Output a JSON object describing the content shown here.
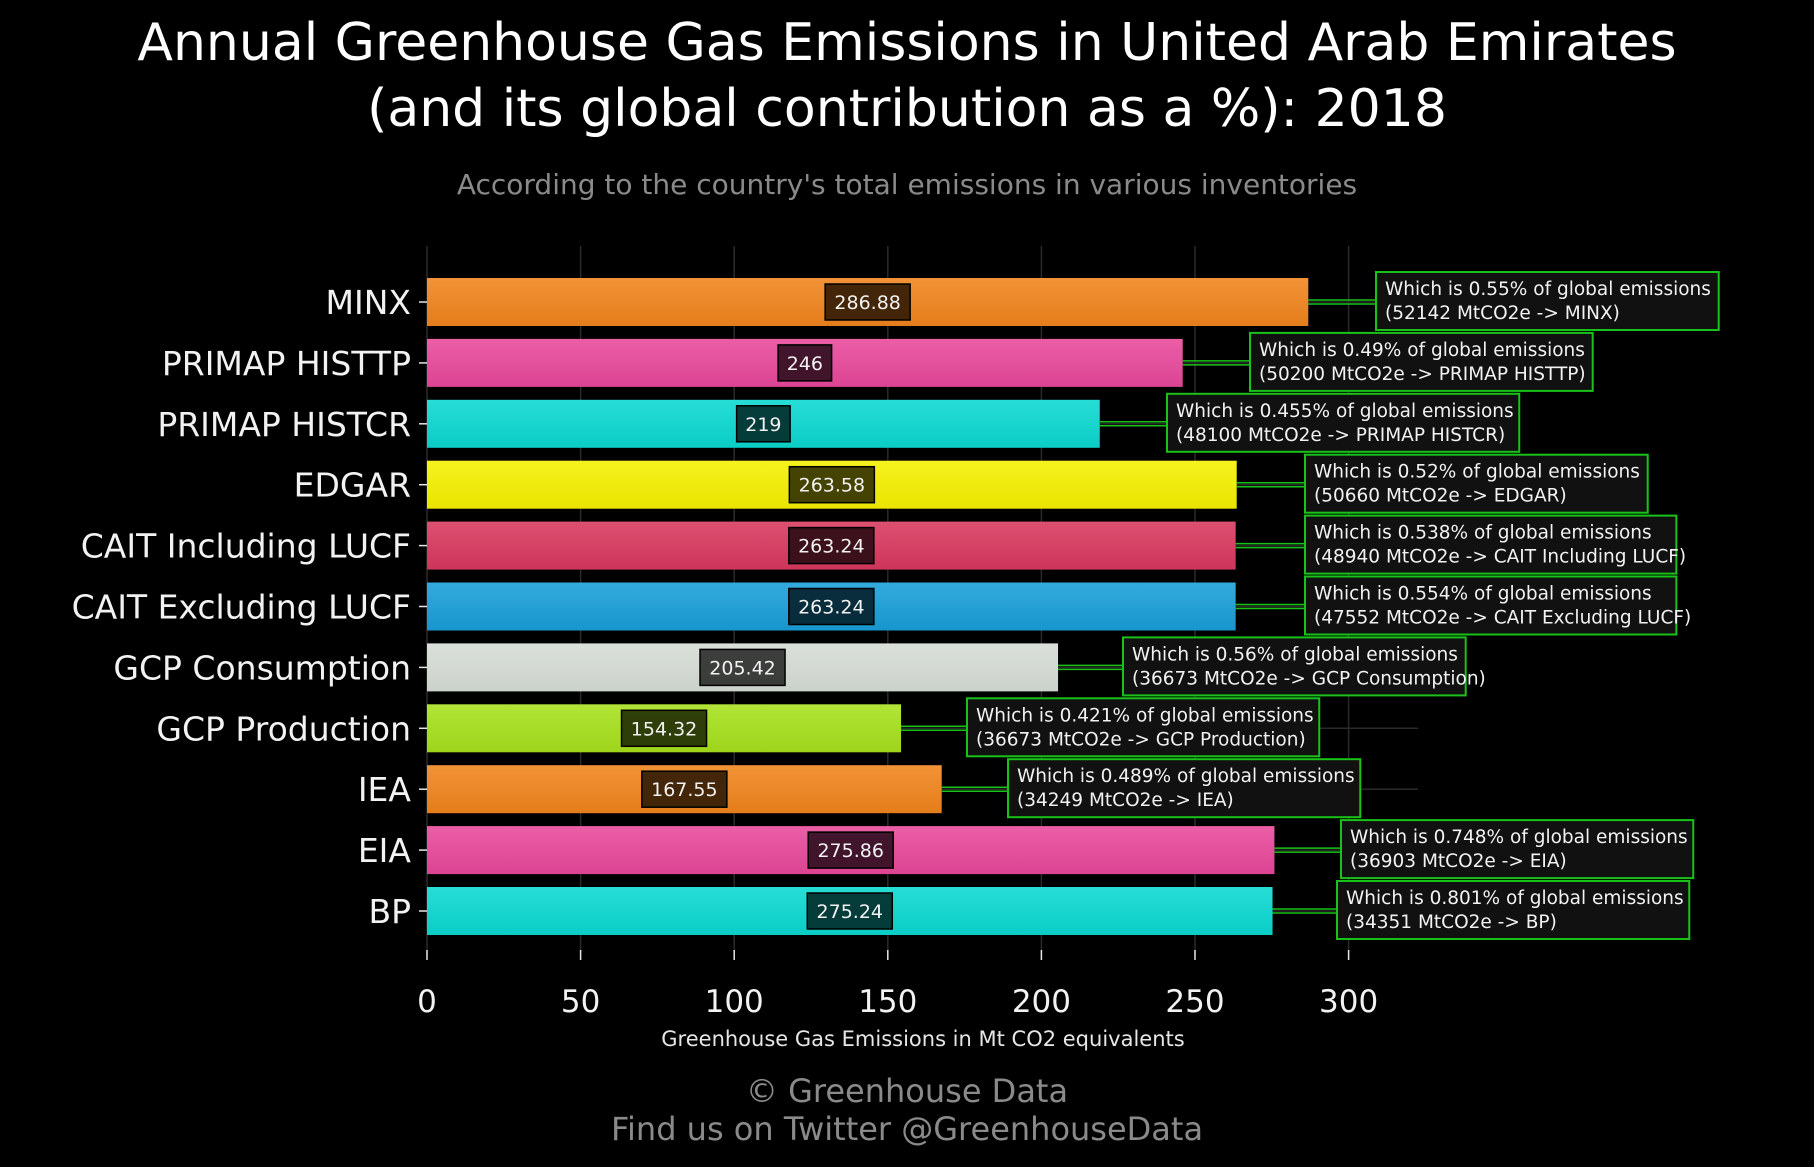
{
  "title_line1": "Annual Greenhouse Gas Emissions in United Arab Emirates",
  "title_line2": "(and its global contribution as a %): 2018",
  "subtitle": "According to the country's total emissions in various inventories",
  "footer_line1": "© Greenhouse Data",
  "footer_line2": "Find us on Twitter @GreenhouseData",
  "chart_data": {
    "type": "bar",
    "orientation": "horizontal",
    "xlabel": "Greenhouse Gas Emissions in Mt CO2 equivalents",
    "xlim": [
      0,
      330
    ],
    "xticks": [
      0,
      50,
      100,
      150,
      200,
      250,
      300
    ],
    "grid": true,
    "categories": [
      "MINX",
      "PRIMAP HISTTP",
      "PRIMAP HISTCR",
      "EDGAR",
      "CAIT Including LUCF",
      "CAIT Excluding LUCF",
      "GCP Consumption",
      "GCP Production",
      "IEA",
      "EIA",
      "BP"
    ],
    "values": [
      286.88,
      246,
      219,
      263.58,
      263.24,
      263.24,
      205.42,
      154.32,
      167.55,
      275.86,
      275.24
    ],
    "value_labels": [
      "286.88",
      "246",
      "219",
      "263.58",
      "263.24",
      "263.24",
      "205.42",
      "154.32",
      "167.55",
      "275.86",
      "275.24"
    ],
    "colors": [
      "#f0841c",
      "#e8489a",
      "#0ad8d0",
      "#f5f000",
      "#d8385e",
      "#189ed8",
      "#d6dcd6",
      "#a6e01c",
      "#f0841c",
      "#e8489a",
      "#0ad8d0"
    ],
    "annotations": [
      {
        "line1": "Which is 0.55% of global emissions",
        "line2": "(52142 MtCO2e -> MINX)"
      },
      {
        "line1": "Which is 0.49% of global emissions",
        "line2": "(50200 MtCO2e -> PRIMAP HISTTP)"
      },
      {
        "line1": "Which is 0.455% of global emissions",
        "line2": "(48100 MtCO2e -> PRIMAP HISTCR)"
      },
      {
        "line1": "Which is 0.52% of global emissions",
        "line2": "(50660 MtCO2e -> EDGAR)"
      },
      {
        "line1": "Which is 0.538% of global emissions",
        "line2": "(48940 MtCO2e -> CAIT Including LUCF)"
      },
      {
        "line1": "Which is 0.554% of global emissions",
        "line2": "(47552 MtCO2e -> CAIT Excluding LUCF)"
      },
      {
        "line1": "Which is 0.56% of global emissions",
        "line2": "(36673 MtCO2e -> GCP Consumption)"
      },
      {
        "line1": "Which is 0.421% of global emissions",
        "line2": "(36673 MtCO2e -> GCP Production)"
      },
      {
        "line1": "Which is 0.489% of global emissions",
        "line2": "(34249 MtCO2e -> IEA)"
      },
      {
        "line1": "Which is 0.748% of global emissions",
        "line2": "(36903 MtCO2e -> EIA)"
      },
      {
        "line1": "Which is 0.801% of global emissions",
        "line2": "(34351 MtCO2e -> BP)"
      }
    ],
    "annotation_border_color": "#19c219",
    "connector_color": "#19c219"
  }
}
